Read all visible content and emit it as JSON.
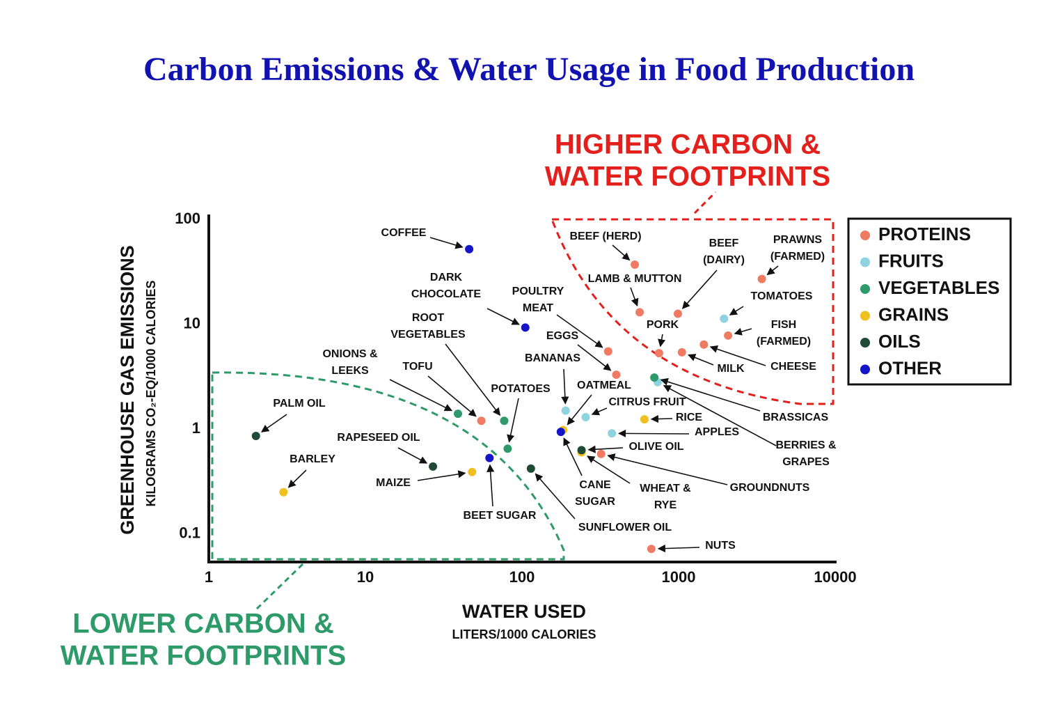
{
  "chart_data": {
    "type": "scatter",
    "title": "Carbon Emissions & Water Usage in Food Production",
    "x_label": "WATER USED",
    "x_sublabel": "LITERS/1000 CALORIES",
    "y_label": "GREENHOUSE GAS EMISSIONS",
    "y_sublabel": "KILOGRAMS CO₂-EQ/1000 CALORIES",
    "x_log": true,
    "y_log": true,
    "xlim": [
      1,
      10000
    ],
    "xticks": [
      1,
      10,
      100,
      1000,
      10000
    ],
    "ylim": [
      0.054,
      100
    ],
    "yticks": [
      0.1,
      1,
      10,
      100
    ],
    "grid": false,
    "legend": "right",
    "annotations": [
      {
        "lines": [
          "HIGHER CARBON &",
          "WATER FOOTPRINTS"
        ],
        "color": "#e3201b"
      },
      {
        "lines": [
          "LOWER CARBON &",
          "WATER FOOTPRINTS"
        ],
        "color": "#2e9a6a"
      }
    ],
    "series": [
      {
        "name": "PROTEINS",
        "color": "#f07b63",
        "x": [
          525,
          564,
          990,
          3400,
          2070,
          1450,
          750,
          1050,
          355,
          400,
          320,
          670,
          55
        ],
        "values": [
          37,
          13,
          12.6,
          27,
          7.8,
          6.4,
          5.3,
          5.4,
          5.5,
          3.3,
          0.58,
          0.072,
          1.2
        ],
        "labels": [
          [
            "BEEF (HERD)"
          ],
          [
            "LAMB & MUTTON"
          ],
          [
            "BEEF",
            "(DAIRY)"
          ],
          [
            "PRAWNS",
            "(FARMED)"
          ],
          [
            "FISH",
            "(FARMED)"
          ],
          [
            "CHEESE"
          ],
          [
            "PORK"
          ],
          [
            "MILK"
          ],
          [
            "POULTRY",
            "MEAT"
          ],
          [
            "EGGS"
          ],
          [
            "GROUNDNUTS"
          ],
          [
            "NUTS"
          ],
          [
            "TOFU"
          ]
        ]
      },
      {
        "name": "FRUITS",
        "color": "#8fd3e0",
        "x": [
          1950,
          735,
          190,
          255,
          375
        ],
        "values": [
          11.3,
          2.8,
          1.5,
          1.3,
          0.91
        ],
        "labels": [
          [
            "TOMATOES"
          ],
          [
            "BERRIES &",
            "GRAPES"
          ],
          [
            "BANANAS"
          ],
          [
            "CITRUS FRUIT"
          ],
          [
            "APPLES"
          ]
        ]
      },
      {
        "name": "VEGETABLES",
        "color": "#2e9a6a",
        "x": [
          700,
          39,
          77,
          81
        ],
        "values": [
          3.1,
          1.4,
          1.2,
          0.65
        ],
        "labels": [
          [
            "BRASSICAS"
          ],
          [
            "ONIONS &",
            "LEEKS"
          ],
          [
            "ROOT",
            "VEGETABLES"
          ],
          [
            "POTATOES"
          ]
        ]
      },
      {
        "name": "GRAINS",
        "color": "#f0c020",
        "x": [
          183,
          605,
          240,
          48,
          3
        ],
        "values": [
          0.98,
          1.24,
          0.6,
          0.39,
          0.25
        ],
        "labels": [
          [
            "OATMEAL"
          ],
          [
            "RICE"
          ],
          [
            "WHEAT &",
            "RYE"
          ],
          [
            "MAIZE"
          ],
          [
            "BARLEY"
          ]
        ]
      },
      {
        "name": "OILS",
        "color": "#1f4a35",
        "x": [
          240,
          27,
          114,
          2
        ],
        "values": [
          0.63,
          0.44,
          0.42,
          0.86
        ],
        "labels": [
          [
            "OLIVE OIL"
          ],
          [
            "RAPESEED OIL"
          ],
          [
            "SUNFLOWER OIL"
          ],
          [
            "PALM OIL"
          ]
        ]
      },
      {
        "name": "OTHER",
        "color": "#1414c8",
        "x": [
          46,
          105,
          177,
          62
        ],
        "values": [
          52,
          9.3,
          0.94,
          0.53
        ],
        "labels": [
          [
            "COFFEE"
          ],
          [
            "DARK",
            "CHOCOLATE"
          ],
          [
            "CANE",
            "SUGAR"
          ],
          [
            "BEET SUGAR"
          ]
        ]
      }
    ]
  }
}
